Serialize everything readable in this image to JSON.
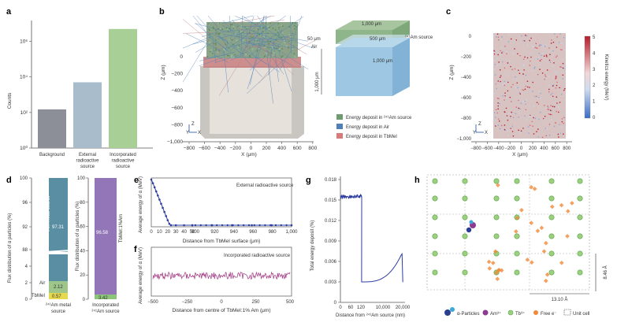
{
  "panels": {
    "a": {
      "label": "a",
      "ylabel": "Counts",
      "yticks": [
        "10⁰",
        "10²",
        "10⁴",
        "10⁶"
      ],
      "categories": [
        "Background",
        "External radioactive source",
        "Incorporated radioactive source"
      ],
      "xlabels": [
        [
          "Background"
        ],
        [
          "External",
          "radioactive",
          "source"
        ],
        [
          "Incorporated",
          "radioactive",
          "source"
        ]
      ],
      "colors": [
        "#8c8f97",
        "#a9bccb",
        "#a8cf96"
      ]
    },
    "b": {
      "label": "b",
      "ylabel": "Z (μm)",
      "xlabel": "X (μm)",
      "xticks": [
        "−800",
        "−600",
        "−400",
        "−200",
        "0",
        "200",
        "400",
        "600",
        "800"
      ],
      "yticks": [
        "0",
        "−200",
        "−400",
        "−600",
        "−800",
        "−1,000"
      ],
      "schematic": {
        "dims": [
          "1,000 μm",
          "500 μm",
          "50 μm",
          "1,000 μm",
          "1,000 μm"
        ],
        "source_label": "²⁴¹Am source",
        "air_label": "Air",
        "tbmel_label": "TbMeI"
      },
      "legend": [
        "Energy deposit in ²⁴¹Am source",
        "Energy deposit in Air",
        "Energy deposit in TbMeI"
      ],
      "legend_colors": [
        "#6e9c6e",
        "#4f7fb8",
        "#d97a7a"
      ],
      "axis_glyphs": [
        "Z",
        "Y",
        "X"
      ]
    },
    "c": {
      "label": "c",
      "ylabel": "Z (μm)",
      "xlabel": "X (μm)",
      "xticks": [
        "−800",
        "−600",
        "−400",
        "−200",
        "0",
        "200",
        "400",
        "600",
        "800"
      ],
      "yticks": [
        "0",
        "−200",
        "−400",
        "−600",
        "−800",
        "−1,000"
      ],
      "colorbar_label": "Kinetics energy (MeV)",
      "colorbar_ticks": [
        "5",
        "4",
        "3",
        "2",
        "1",
        "0"
      ],
      "axis_glyphs": [
        "Z",
        "Y",
        "X"
      ]
    },
    "d": {
      "label": "d",
      "ylabel": "Flux distribution of α particles (%)",
      "left_yticks": [
        "100",
        "96",
        "92",
        "88",
        "4",
        "2",
        "0"
      ],
      "right_yticks": [
        "100",
        "80",
        "60",
        "40",
        "20",
        "0"
      ],
      "left_bar": {
        "label": "²⁴¹Am metal source",
        "segments": [
          {
            "name": "²⁴¹Am metal source",
            "value": "97.31",
            "color": "#5a8fa3"
          },
          {
            "name": "Air",
            "value": "2.12",
            "color": "#9ec58a"
          },
          {
            "name": "TbMeI",
            "value": "0.57",
            "color": "#e6d94f"
          }
        ]
      },
      "right_bar": {
        "label": "TbMeI:1%Am",
        "segments": [
          {
            "name": "TbMeI:1%Am",
            "value": "96.58",
            "color": "#9276b7"
          },
          {
            "name": "",
            "value": "3.42",
            "color": "#8cc47a"
          }
        ]
      },
      "xlabels": [
        [
          "²⁴¹Am metal",
          "source"
        ],
        [
          "Incorporated",
          "²⁴¹Am source"
        ]
      ]
    },
    "e": {
      "label": "e",
      "title": "External radioactive source",
      "ylabel": "Average energy of α (MeV)",
      "xlabel": "Distance from TbMeI surface (μm)",
      "xticks": [
        "0",
        "10",
        "20",
        "30",
        "40",
        "50",
        "900",
        "920",
        "940",
        "960",
        "980",
        "1,000"
      ]
    },
    "f": {
      "label": "f",
      "title": "Incorporated radioactive source",
      "ylabel": "Average energy of α (MeV)",
      "xlabel": "Distance from centre of TbMeI:1% Am (μm)",
      "xticks": [
        "−500",
        "−250",
        "0",
        "250",
        "500"
      ]
    },
    "g": {
      "label": "g",
      "ylabel": "Total energy deposit (%)",
      "xlabel": "Distance from ²⁴¹Am source (nm)",
      "yticks": [
        "0.018",
        "0.015",
        "0.012",
        "0.009",
        "0.006",
        "0.003",
        "0"
      ],
      "xticks": [
        "0",
        "60",
        "120",
        "10,000",
        "20,000"
      ]
    },
    "h": {
      "label": "h",
      "dims": [
        "8.46 Å",
        "13.10 Å"
      ],
      "legend": [
        "α-Particles",
        "Am³⁺",
        "Tb³⁺",
        "Free e⁻",
        "Unit cell"
      ]
    }
  },
  "chart_data": [
    {
      "type": "bar",
      "title": "",
      "categories": [
        "Background",
        "External radioactive source",
        "Incorporated radioactive source"
      ],
      "values": [
        150,
        5000,
        5000000
      ],
      "ylabel": "Counts",
      "yscale": "log",
      "ylim": [
        1,
        10000000
      ]
    },
    {
      "type": "bar",
      "title": "",
      "stacked": true,
      "categories": [
        "241Am metal source",
        "Incorporated 241Am source"
      ],
      "series": [
        {
          "name": "241Am metal source",
          "values": [
            97.31,
            0
          ]
        },
        {
          "name": "Air",
          "values": [
            2.12,
            0
          ]
        },
        {
          "name": "TbMeI",
          "values": [
            0.57,
            0
          ]
        },
        {
          "name": "TbMeI:1%Am",
          "values": [
            0,
            96.58
          ]
        },
        {
          "name": "",
          "values": [
            0,
            3.42
          ]
        }
      ],
      "ylabel": "Flux distribution of α particles (%)"
    },
    {
      "type": "line",
      "title": "External radioactive source",
      "x": [
        0,
        2,
        4,
        6,
        8,
        10,
        12,
        14,
        16,
        18,
        20,
        22,
        24,
        30,
        40,
        50,
        900,
        920,
        940,
        960,
        980,
        1000
      ],
      "y": [
        5.0,
        4.6,
        4.15,
        3.7,
        3.25,
        2.8,
        2.35,
        1.9,
        1.45,
        1.0,
        0.55,
        0.15,
        0.0,
        0.0,
        0.0,
        0.0,
        0.0,
        0.0,
        0.0,
        0.0,
        0.0,
        0.0
      ],
      "xlabel": "Distance from TbMeI surface (μm)",
      "ylabel": "Average energy of α (MeV)"
    },
    {
      "type": "line",
      "title": "Incorporated radioactive source",
      "x": [
        -500,
        -400,
        -300,
        -200,
        -100,
        0,
        100,
        200,
        300,
        400,
        500
      ],
      "y": [
        2.6,
        2.5,
        2.7,
        2.55,
        2.65,
        2.6,
        2.5,
        2.7,
        2.6,
        2.55,
        2.65
      ],
      "xlabel": "Distance from centre of TbMeI:1% Am (μm)",
      "ylabel": "Average energy of α (MeV)"
    },
    {
      "type": "line",
      "title": "",
      "x": [
        0,
        20,
        40,
        60,
        80,
        100,
        120,
        125,
        130,
        5000,
        10000,
        15000,
        20000,
        22000,
        23000
      ],
      "y": [
        0.0156,
        0.0155,
        0.0154,
        0.0154,
        0.0153,
        0.0153,
        0.0152,
        0.003,
        0.0033,
        0.0036,
        0.0041,
        0.0051,
        0.0068,
        0.0072,
        0.0
      ],
      "xlabel": "Distance from 241Am source (nm)",
      "ylabel": "Total energy deposit (%)",
      "ylim": [
        0,
        0.018
      ]
    }
  ]
}
